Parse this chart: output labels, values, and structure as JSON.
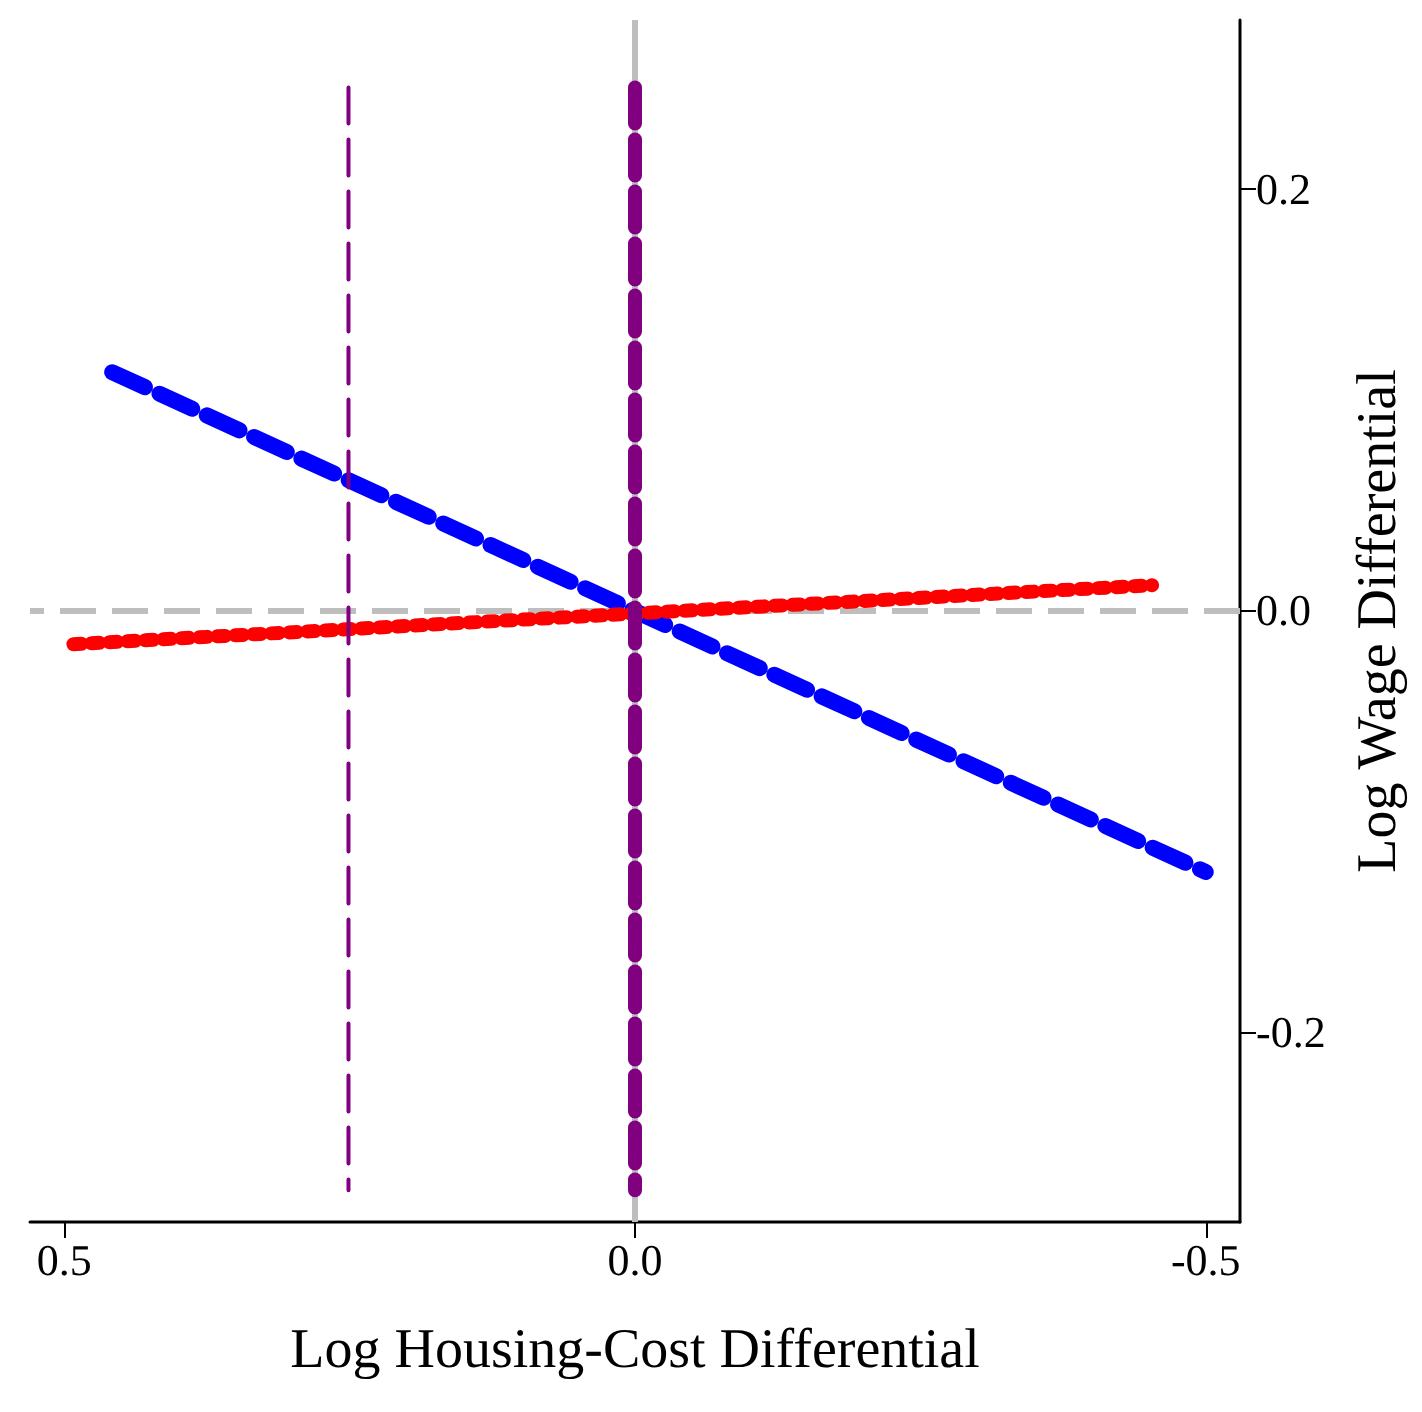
{
  "chart_data": {
    "type": "line",
    "xlabel": "Log Housing-Cost Differential",
    "ylabel": "Log Wage Differential",
    "xlim": [
      0.53,
      -0.53
    ],
    "xticks": [
      {
        "value": 0.5,
        "label": "0.5"
      },
      {
        "value": 0,
        "label": "0.0"
      },
      {
        "value": -0.5,
        "label": "-0.5"
      }
    ],
    "ylim": [
      -0.29,
      0.28
    ],
    "yticks": [
      {
        "value": -0.2,
        "label": "-0.2"
      },
      {
        "value": 0,
        "label": "0.0"
      },
      {
        "value": 0.2,
        "label": "0.2"
      }
    ],
    "series": [
      {
        "color": "#0000ff",
        "x": [
          0.458,
          -0.5
        ],
        "values": [
          0.113,
          -0.124
        ],
        "line_style": "dashed"
      },
      {
        "color": "#ff0000",
        "x": [
          0.492,
          -0.453
        ],
        "values": [
          -0.016,
          0.012
        ],
        "line_style": "dotted"
      },
      {
        "color": "#800080",
        "x": [
          0,
          0
        ],
        "values": [
          0.248,
          -0.275
        ],
        "line_style": "dashed"
      },
      {
        "color": "#800080",
        "x": [
          0.251,
          0.251
        ],
        "values": [
          0.248,
          -0.275
        ],
        "line_style": "dashed"
      }
    ],
    "ref_lines": [
      {
        "axis": "x",
        "value": 0,
        "color": "#bebebe",
        "line_style": "solid"
      },
      {
        "axis": "y",
        "value": 0,
        "color": "#bebebe",
        "line_style": "dashed"
      }
    ],
    "grid": false,
    "marker": "none"
  }
}
